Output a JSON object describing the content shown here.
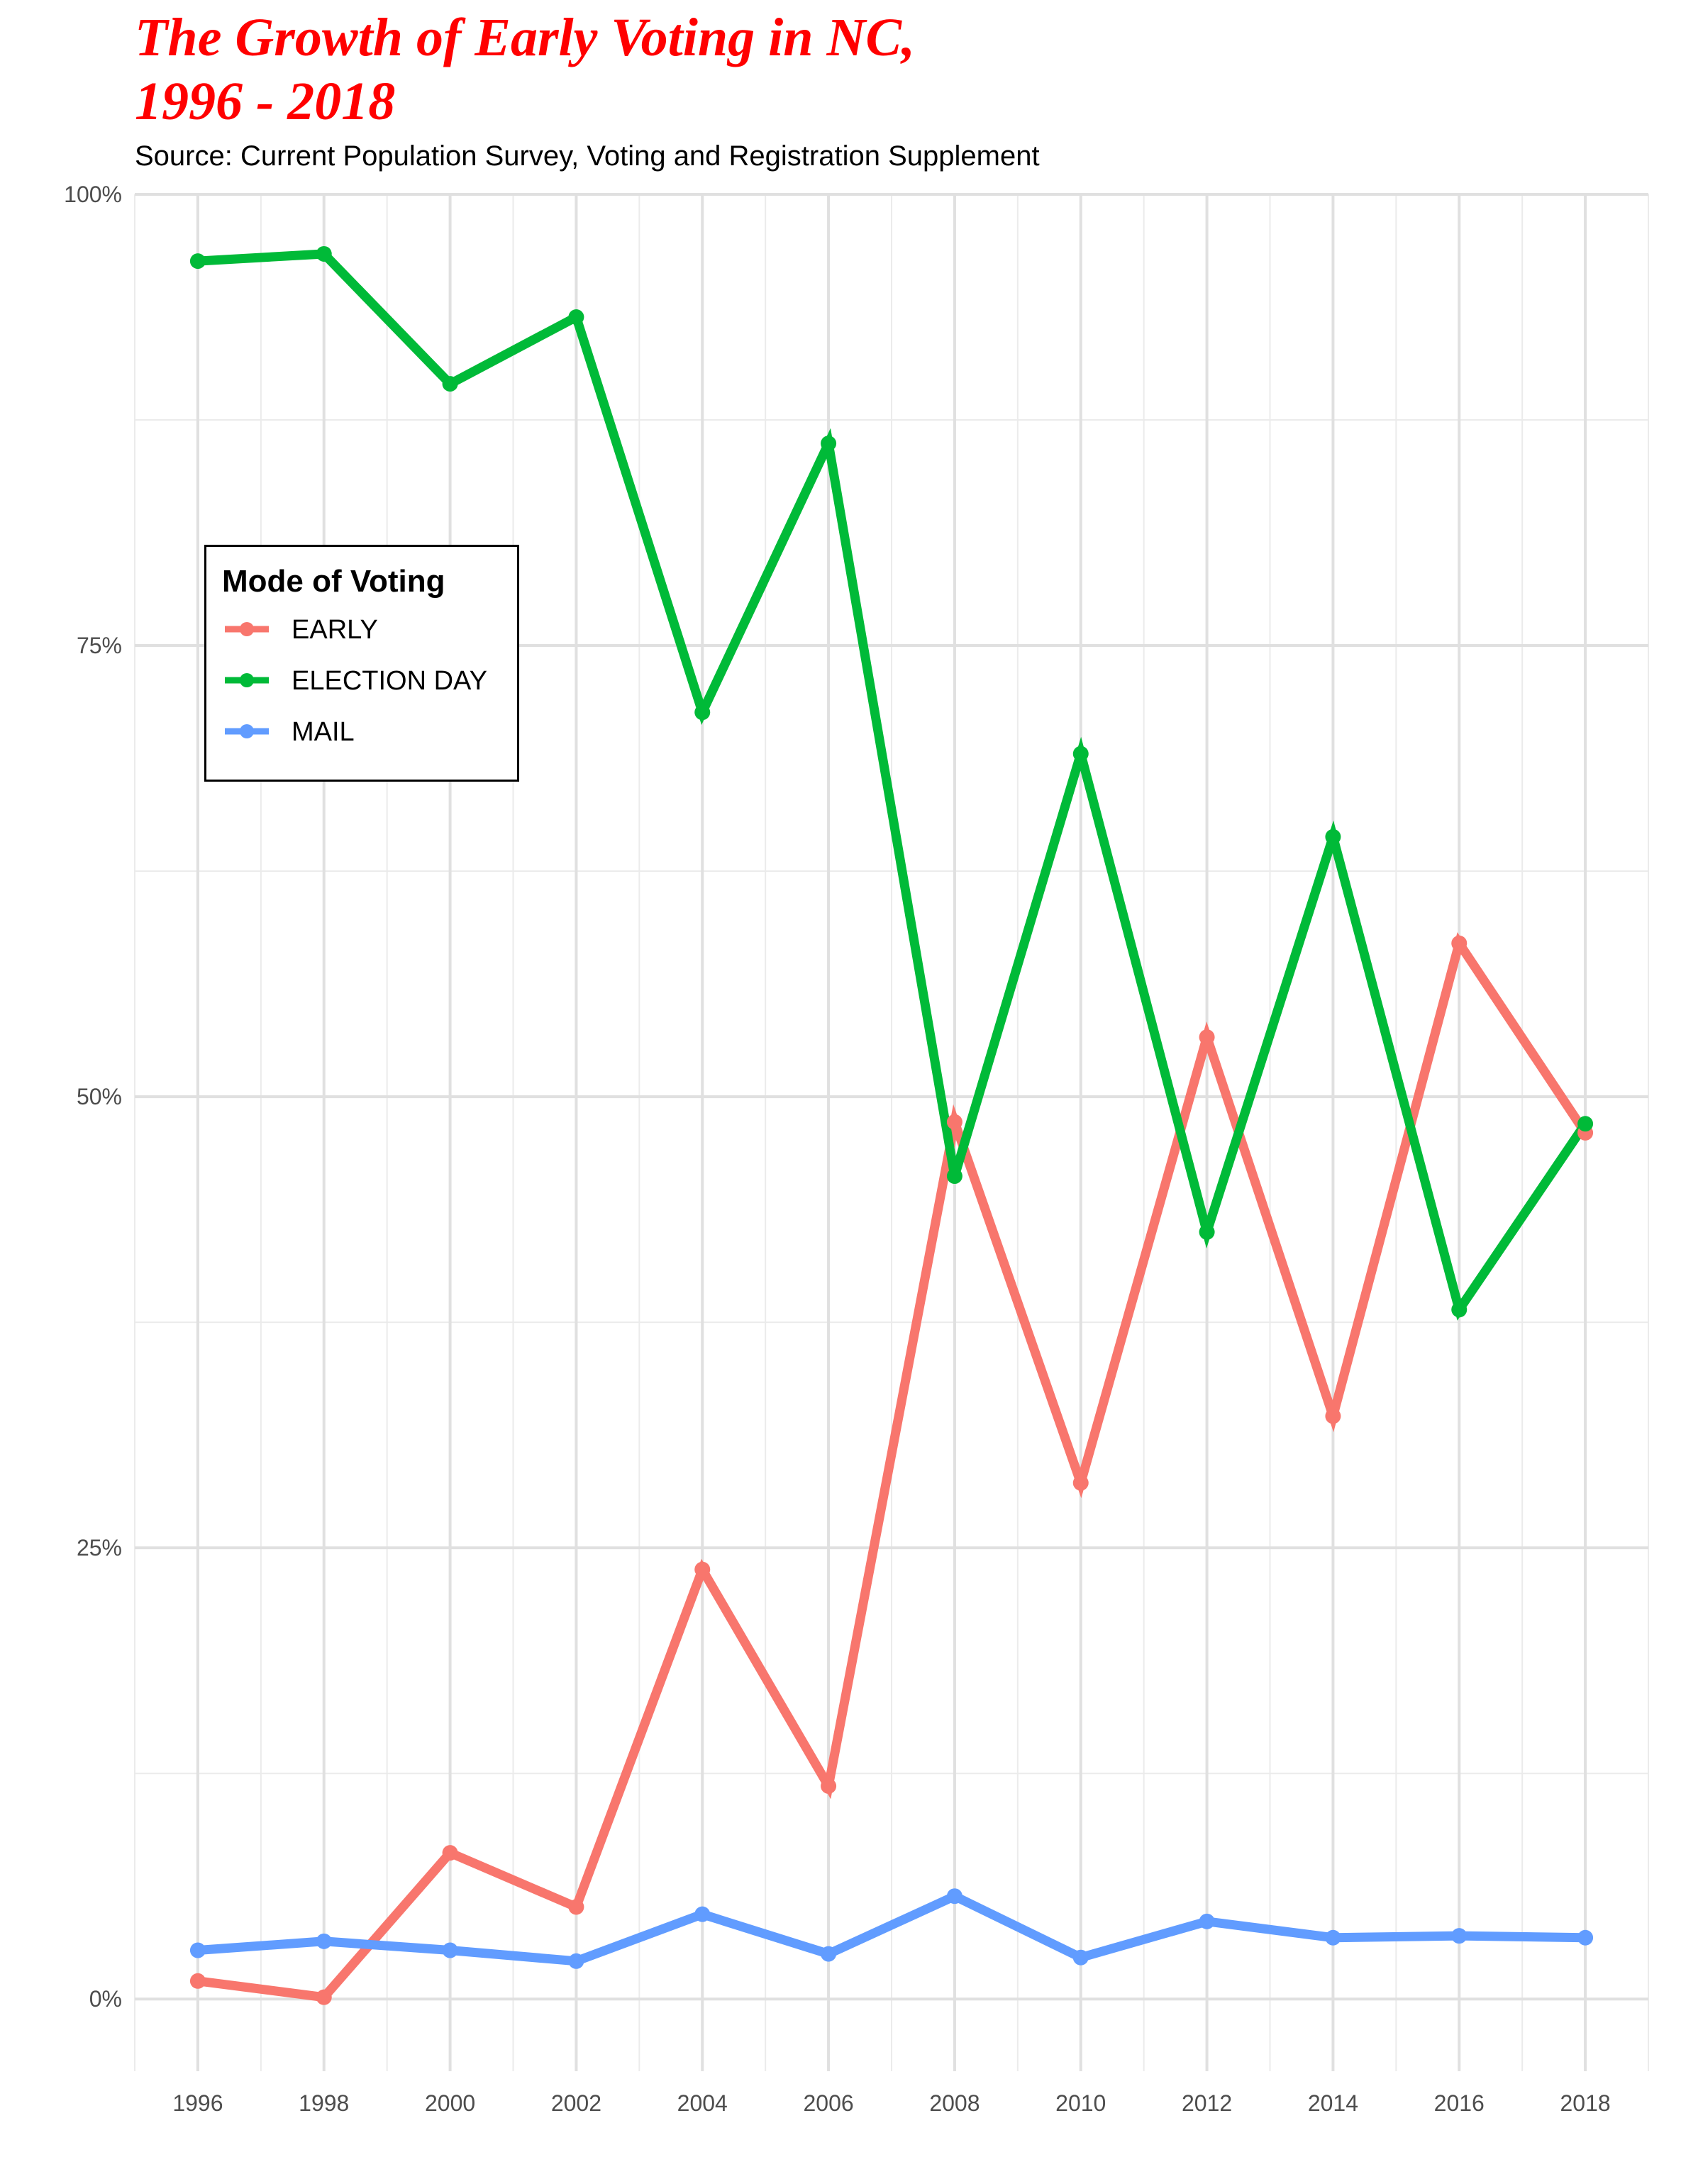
{
  "chart_data": {
    "type": "line",
    "title_lines": [
      "The Growth of Early Voting in NC,",
      "1996 - 2018"
    ],
    "subtitle": "Source: Current Population Survey, Voting and Registration Supplement",
    "x": [
      1996,
      1998,
      2000,
      2002,
      2004,
      2006,
      2008,
      2010,
      2012,
      2014,
      2016,
      2018
    ],
    "x_tick_labels": [
      "1996",
      "1998",
      "2000",
      "2002",
      "2004",
      "2006",
      "2008",
      "2010",
      "2012",
      "2014",
      "2016",
      "2018"
    ],
    "xlim": [
      1995,
      2019
    ],
    "ylim": [
      -4,
      100
    ],
    "y_ticks": [
      0,
      25,
      50,
      75,
      100
    ],
    "y_tick_labels": [
      "0%",
      "25%",
      "50%",
      "75%",
      "100%"
    ],
    "grid": true,
    "legend": {
      "title": "Mode of Voting",
      "placement": "top-left"
    },
    "series": [
      {
        "name": "EARLY",
        "color": "#F8766D",
        "values": [
          1.0,
          0.1,
          8.1,
          5.1,
          23.8,
          11.8,
          48.6,
          28.6,
          53.3,
          32.3,
          58.5,
          48.0
        ]
      },
      {
        "name": "ELECTION DAY",
        "color": "#00BA38",
        "values": [
          96.3,
          96.7,
          89.5,
          93.2,
          71.3,
          86.2,
          45.6,
          69.0,
          42.5,
          64.4,
          38.2,
          48.5
        ]
      },
      {
        "name": "MAIL",
        "color": "#619CFF",
        "values": [
          2.7,
          3.2,
          2.7,
          2.1,
          4.7,
          2.5,
          5.7,
          2.3,
          4.3,
          3.4,
          3.5,
          3.4
        ]
      }
    ]
  }
}
